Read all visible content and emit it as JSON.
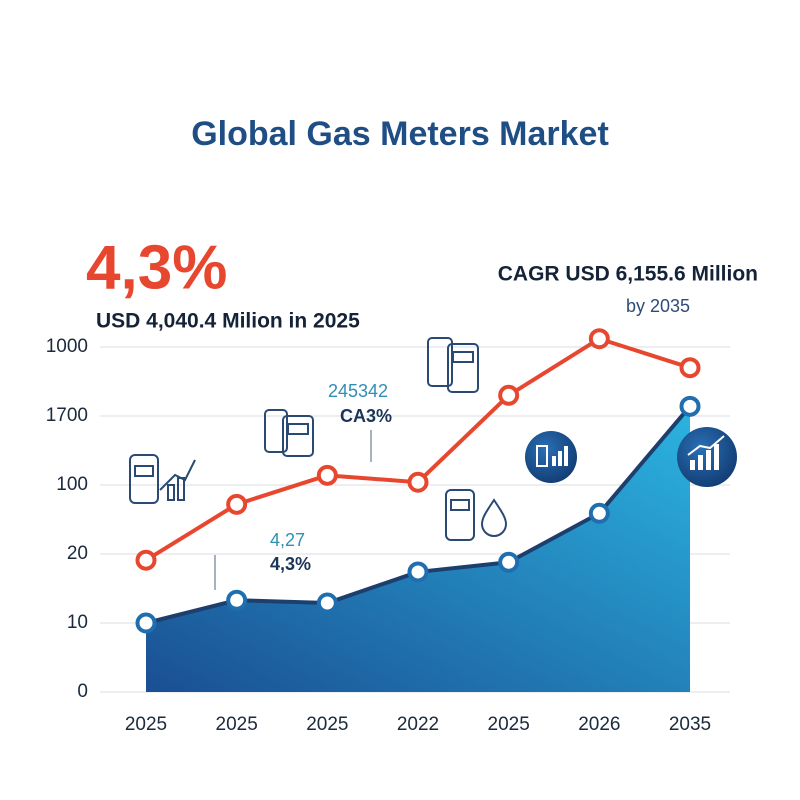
{
  "chart_data": {
    "type": "line",
    "title": "Global Gas Meters Market",
    "headline": "4,3%",
    "subtitle": "USD 4,040.4 Milion in 2025",
    "annotations": [
      "CAGR USD 6,155.6 Million",
      "by 2035",
      "245342",
      "CA3%",
      "4,27",
      "4,3%"
    ],
    "categories": [
      "2025",
      "2025",
      "2025",
      "2022",
      "2025",
      "2026",
      "2035"
    ],
    "series": [
      {
        "color": "#e8472f",
        "area": false,
        "values": [
          1.91,
          2.72,
          3.14,
          3.04,
          4.3,
          5.12,
          4.7
        ]
      },
      {
        "color": "#1f6fb0",
        "area": true,
        "values": [
          1.0,
          1.33,
          1.29,
          1.74,
          1.88,
          2.59,
          4.14
        ]
      }
    ],
    "ylim": [
      0,
      5.2
    ],
    "yticks": [
      0,
      {
        "value": 1,
        "label": "10"
      },
      {
        "value": 2,
        "label": "20"
      },
      {
        "value": 3,
        "label": "100"
      },
      {
        "value": 4,
        "label": "1700"
      },
      {
        "value": 5,
        "label": "1000"
      }
    ],
    "grid": true
  }
}
